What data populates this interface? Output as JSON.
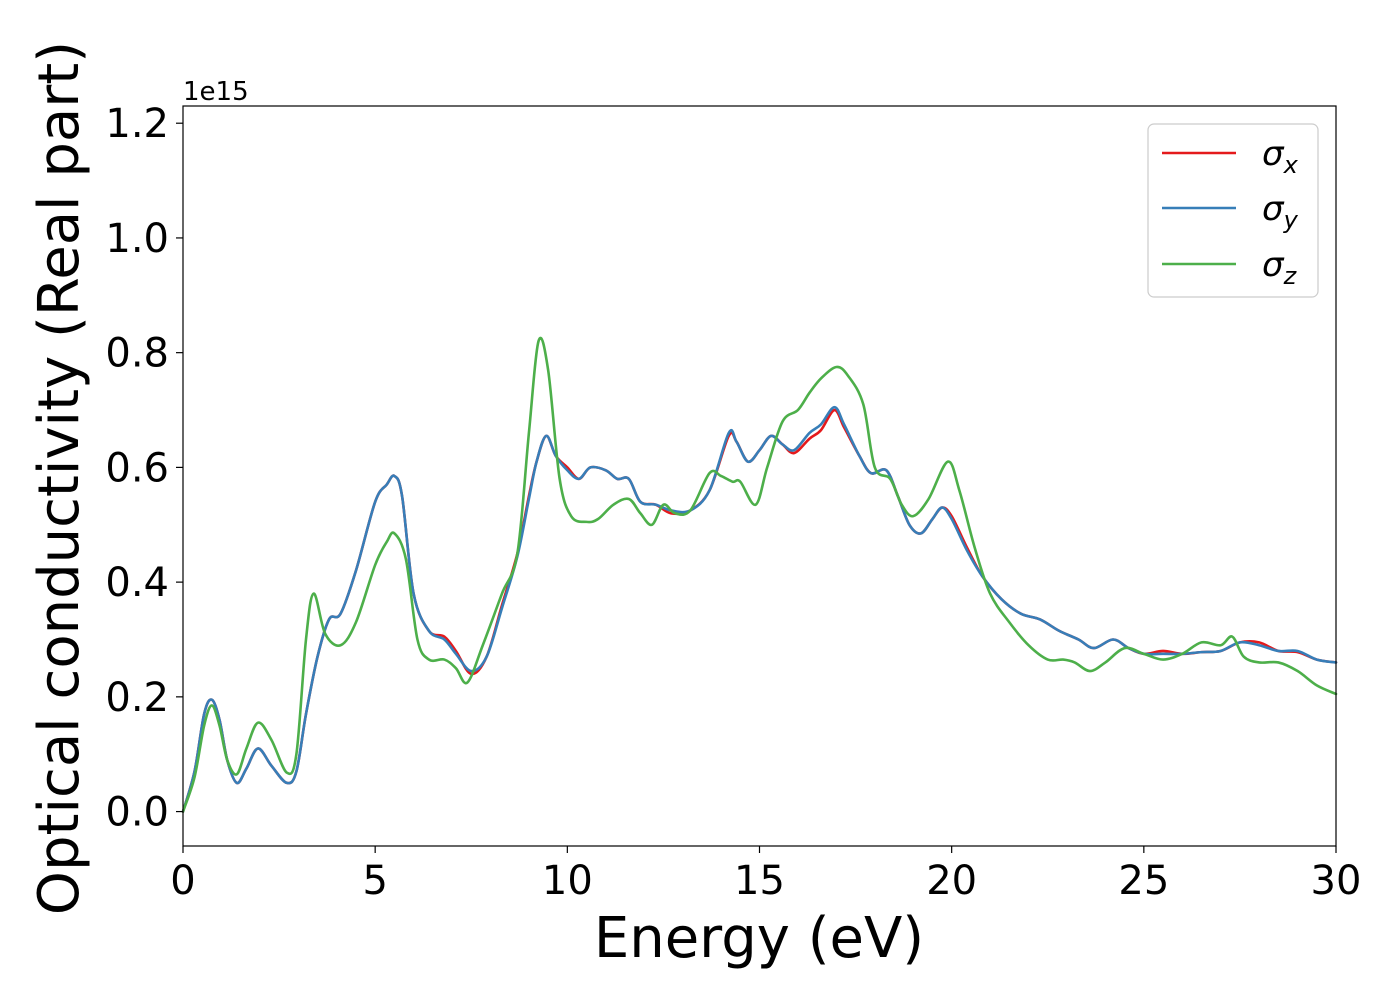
{
  "chart_data": {
    "type": "line",
    "xlabel": "Energy (eV)",
    "ylabel": "Optical conductivity (Real part)",
    "y_offset_label": "1e15",
    "xlim": [
      0,
      30
    ],
    "ylim": [
      -0.06,
      1.23
    ],
    "x_ticks": [
      0,
      5,
      10,
      15,
      20,
      25,
      30
    ],
    "x_tick_labels": [
      "0",
      "5",
      "10",
      "15",
      "20",
      "25",
      "30"
    ],
    "y_ticks": [
      0.0,
      0.2,
      0.4,
      0.6,
      0.8,
      1.0,
      1.2
    ],
    "y_tick_labels": [
      "0.0",
      "0.2",
      "0.4",
      "0.6",
      "0.8",
      "1.0",
      "1.2"
    ],
    "grid": false,
    "legend_position": "top-right",
    "series": [
      {
        "name_base": "σ",
        "name_sub": "x",
        "color": "#e41a1c",
        "points": [
          [
            0,
            0
          ],
          [
            0.3,
            0.07
          ],
          [
            0.55,
            0.17
          ],
          [
            0.75,
            0.195
          ],
          [
            0.95,
            0.16
          ],
          [
            1.15,
            0.09
          ],
          [
            1.4,
            0.05
          ],
          [
            1.65,
            0.075
          ],
          [
            1.95,
            0.11
          ],
          [
            2.3,
            0.08
          ],
          [
            2.7,
            0.05
          ],
          [
            2.95,
            0.07
          ],
          [
            3.2,
            0.17
          ],
          [
            3.5,
            0.27
          ],
          [
            3.8,
            0.335
          ],
          [
            4.1,
            0.345
          ],
          [
            4.5,
            0.42
          ],
          [
            5.0,
            0.54
          ],
          [
            5.3,
            0.57
          ],
          [
            5.5,
            0.585
          ],
          [
            5.7,
            0.55
          ],
          [
            6.0,
            0.38
          ],
          [
            6.4,
            0.315
          ],
          [
            6.8,
            0.305
          ],
          [
            7.1,
            0.28
          ],
          [
            7.5,
            0.24
          ],
          [
            7.9,
            0.27
          ],
          [
            8.3,
            0.36
          ],
          [
            8.7,
            0.45
          ],
          [
            9.0,
            0.55
          ],
          [
            9.2,
            0.61
          ],
          [
            9.45,
            0.655
          ],
          [
            9.7,
            0.62
          ],
          [
            10.0,
            0.6
          ],
          [
            10.3,
            0.58
          ],
          [
            10.6,
            0.6
          ],
          [
            11.0,
            0.595
          ],
          [
            11.3,
            0.58
          ],
          [
            11.6,
            0.58
          ],
          [
            11.9,
            0.54
          ],
          [
            12.3,
            0.535
          ],
          [
            12.7,
            0.52
          ],
          [
            13.2,
            0.525
          ],
          [
            13.7,
            0.56
          ],
          [
            14.2,
            0.655
          ],
          [
            14.4,
            0.645
          ],
          [
            14.7,
            0.61
          ],
          [
            15.0,
            0.63
          ],
          [
            15.3,
            0.655
          ],
          [
            15.6,
            0.64
          ],
          [
            15.9,
            0.625
          ],
          [
            16.3,
            0.65
          ],
          [
            16.6,
            0.665
          ],
          [
            16.95,
            0.7
          ],
          [
            17.2,
            0.67
          ],
          [
            17.6,
            0.62
          ],
          [
            17.9,
            0.59
          ],
          [
            18.3,
            0.595
          ],
          [
            18.6,
            0.55
          ],
          [
            18.9,
            0.5
          ],
          [
            19.2,
            0.485
          ],
          [
            19.5,
            0.51
          ],
          [
            19.75,
            0.53
          ],
          [
            20.0,
            0.515
          ],
          [
            20.4,
            0.46
          ],
          [
            20.8,
            0.41
          ],
          [
            21.3,
            0.37
          ],
          [
            21.8,
            0.345
          ],
          [
            22.3,
            0.335
          ],
          [
            22.8,
            0.315
          ],
          [
            23.3,
            0.3
          ],
          [
            23.7,
            0.285
          ],
          [
            24.2,
            0.3
          ],
          [
            24.6,
            0.285
          ],
          [
            25.0,
            0.275
          ],
          [
            25.5,
            0.28
          ],
          [
            26.0,
            0.275
          ],
          [
            26.5,
            0.278
          ],
          [
            27.0,
            0.28
          ],
          [
            27.5,
            0.295
          ],
          [
            28.0,
            0.295
          ],
          [
            28.5,
            0.28
          ],
          [
            29.0,
            0.278
          ],
          [
            29.5,
            0.265
          ],
          [
            30.0,
            0.26
          ]
        ]
      },
      {
        "name_base": "σ",
        "name_sub": "y",
        "color": "#377eb8",
        "points": [
          [
            0,
            0
          ],
          [
            0.3,
            0.07
          ],
          [
            0.55,
            0.17
          ],
          [
            0.75,
            0.195
          ],
          [
            0.95,
            0.16
          ],
          [
            1.15,
            0.09
          ],
          [
            1.4,
            0.05
          ],
          [
            1.65,
            0.075
          ],
          [
            1.95,
            0.11
          ],
          [
            2.3,
            0.08
          ],
          [
            2.7,
            0.05
          ],
          [
            2.95,
            0.07
          ],
          [
            3.2,
            0.17
          ],
          [
            3.5,
            0.27
          ],
          [
            3.8,
            0.335
          ],
          [
            4.1,
            0.345
          ],
          [
            4.5,
            0.42
          ],
          [
            5.0,
            0.54
          ],
          [
            5.3,
            0.57
          ],
          [
            5.5,
            0.585
          ],
          [
            5.7,
            0.55
          ],
          [
            6.0,
            0.38
          ],
          [
            6.4,
            0.315
          ],
          [
            6.8,
            0.3
          ],
          [
            7.1,
            0.275
          ],
          [
            7.5,
            0.245
          ],
          [
            7.9,
            0.27
          ],
          [
            8.3,
            0.355
          ],
          [
            8.7,
            0.445
          ],
          [
            9.0,
            0.545
          ],
          [
            9.2,
            0.61
          ],
          [
            9.45,
            0.655
          ],
          [
            9.7,
            0.62
          ],
          [
            10.0,
            0.595
          ],
          [
            10.3,
            0.58
          ],
          [
            10.6,
            0.6
          ],
          [
            11.0,
            0.595
          ],
          [
            11.3,
            0.58
          ],
          [
            11.6,
            0.58
          ],
          [
            11.9,
            0.54
          ],
          [
            12.3,
            0.535
          ],
          [
            12.7,
            0.525
          ],
          [
            13.2,
            0.525
          ],
          [
            13.7,
            0.56
          ],
          [
            14.2,
            0.66
          ],
          [
            14.4,
            0.645
          ],
          [
            14.7,
            0.61
          ],
          [
            15.0,
            0.63
          ],
          [
            15.3,
            0.655
          ],
          [
            15.6,
            0.64
          ],
          [
            15.9,
            0.63
          ],
          [
            16.3,
            0.66
          ],
          [
            16.6,
            0.675
          ],
          [
            16.95,
            0.705
          ],
          [
            17.2,
            0.675
          ],
          [
            17.6,
            0.62
          ],
          [
            17.9,
            0.59
          ],
          [
            18.3,
            0.595
          ],
          [
            18.6,
            0.55
          ],
          [
            18.9,
            0.5
          ],
          [
            19.2,
            0.485
          ],
          [
            19.5,
            0.51
          ],
          [
            19.75,
            0.53
          ],
          [
            20.0,
            0.51
          ],
          [
            20.4,
            0.455
          ],
          [
            20.8,
            0.41
          ],
          [
            21.3,
            0.37
          ],
          [
            21.8,
            0.345
          ],
          [
            22.3,
            0.335
          ],
          [
            22.8,
            0.315
          ],
          [
            23.3,
            0.3
          ],
          [
            23.7,
            0.285
          ],
          [
            24.2,
            0.3
          ],
          [
            24.6,
            0.285
          ],
          [
            25.0,
            0.275
          ],
          [
            25.5,
            0.275
          ],
          [
            26.0,
            0.275
          ],
          [
            26.5,
            0.278
          ],
          [
            27.0,
            0.28
          ],
          [
            27.5,
            0.295
          ],
          [
            28.0,
            0.29
          ],
          [
            28.5,
            0.28
          ],
          [
            29.0,
            0.28
          ],
          [
            29.5,
            0.265
          ],
          [
            30.0,
            0.26
          ]
        ]
      },
      {
        "name_base": "σ",
        "name_sub": "z",
        "color": "#4daf4a",
        "points": [
          [
            0,
            0
          ],
          [
            0.3,
            0.06
          ],
          [
            0.55,
            0.15
          ],
          [
            0.75,
            0.185
          ],
          [
            0.95,
            0.15
          ],
          [
            1.15,
            0.09
          ],
          [
            1.4,
            0.065
          ],
          [
            1.65,
            0.11
          ],
          [
            1.95,
            0.155
          ],
          [
            2.3,
            0.125
          ],
          [
            2.7,
            0.068
          ],
          [
            2.95,
            0.1
          ],
          [
            3.2,
            0.3
          ],
          [
            3.4,
            0.38
          ],
          [
            3.7,
            0.31
          ],
          [
            4.1,
            0.29
          ],
          [
            4.5,
            0.33
          ],
          [
            5.0,
            0.43
          ],
          [
            5.3,
            0.47
          ],
          [
            5.5,
            0.485
          ],
          [
            5.8,
            0.44
          ],
          [
            6.1,
            0.3
          ],
          [
            6.4,
            0.265
          ],
          [
            6.8,
            0.265
          ],
          [
            7.1,
            0.25
          ],
          [
            7.4,
            0.225
          ],
          [
            7.8,
            0.29
          ],
          [
            8.3,
            0.38
          ],
          [
            8.7,
            0.45
          ],
          [
            9.0,
            0.66
          ],
          [
            9.25,
            0.82
          ],
          [
            9.5,
            0.77
          ],
          [
            9.8,
            0.58
          ],
          [
            10.1,
            0.515
          ],
          [
            10.5,
            0.505
          ],
          [
            10.8,
            0.51
          ],
          [
            11.2,
            0.535
          ],
          [
            11.6,
            0.545
          ],
          [
            11.9,
            0.52
          ],
          [
            12.2,
            0.5
          ],
          [
            12.5,
            0.535
          ],
          [
            12.8,
            0.52
          ],
          [
            13.2,
            0.525
          ],
          [
            13.7,
            0.59
          ],
          [
            14.0,
            0.585
          ],
          [
            14.3,
            0.575
          ],
          [
            14.5,
            0.575
          ],
          [
            14.9,
            0.535
          ],
          [
            15.2,
            0.6
          ],
          [
            15.6,
            0.68
          ],
          [
            16.0,
            0.7
          ],
          [
            16.3,
            0.73
          ],
          [
            16.6,
            0.755
          ],
          [
            17.0,
            0.775
          ],
          [
            17.3,
            0.76
          ],
          [
            17.7,
            0.71
          ],
          [
            18.0,
            0.6
          ],
          [
            18.4,
            0.58
          ],
          [
            18.7,
            0.535
          ],
          [
            19.0,
            0.515
          ],
          [
            19.4,
            0.545
          ],
          [
            19.9,
            0.61
          ],
          [
            20.2,
            0.56
          ],
          [
            20.6,
            0.46
          ],
          [
            21.0,
            0.38
          ],
          [
            21.5,
            0.33
          ],
          [
            22.0,
            0.29
          ],
          [
            22.5,
            0.265
          ],
          [
            22.9,
            0.265
          ],
          [
            23.2,
            0.26
          ],
          [
            23.6,
            0.245
          ],
          [
            24.0,
            0.26
          ],
          [
            24.5,
            0.285
          ],
          [
            25.0,
            0.275
          ],
          [
            25.5,
            0.265
          ],
          [
            26.0,
            0.275
          ],
          [
            26.5,
            0.295
          ],
          [
            27.0,
            0.29
          ],
          [
            27.3,
            0.305
          ],
          [
            27.6,
            0.27
          ],
          [
            28.0,
            0.26
          ],
          [
            28.5,
            0.26
          ],
          [
            29.0,
            0.245
          ],
          [
            29.5,
            0.22
          ],
          [
            30.0,
            0.205
          ]
        ]
      }
    ]
  }
}
